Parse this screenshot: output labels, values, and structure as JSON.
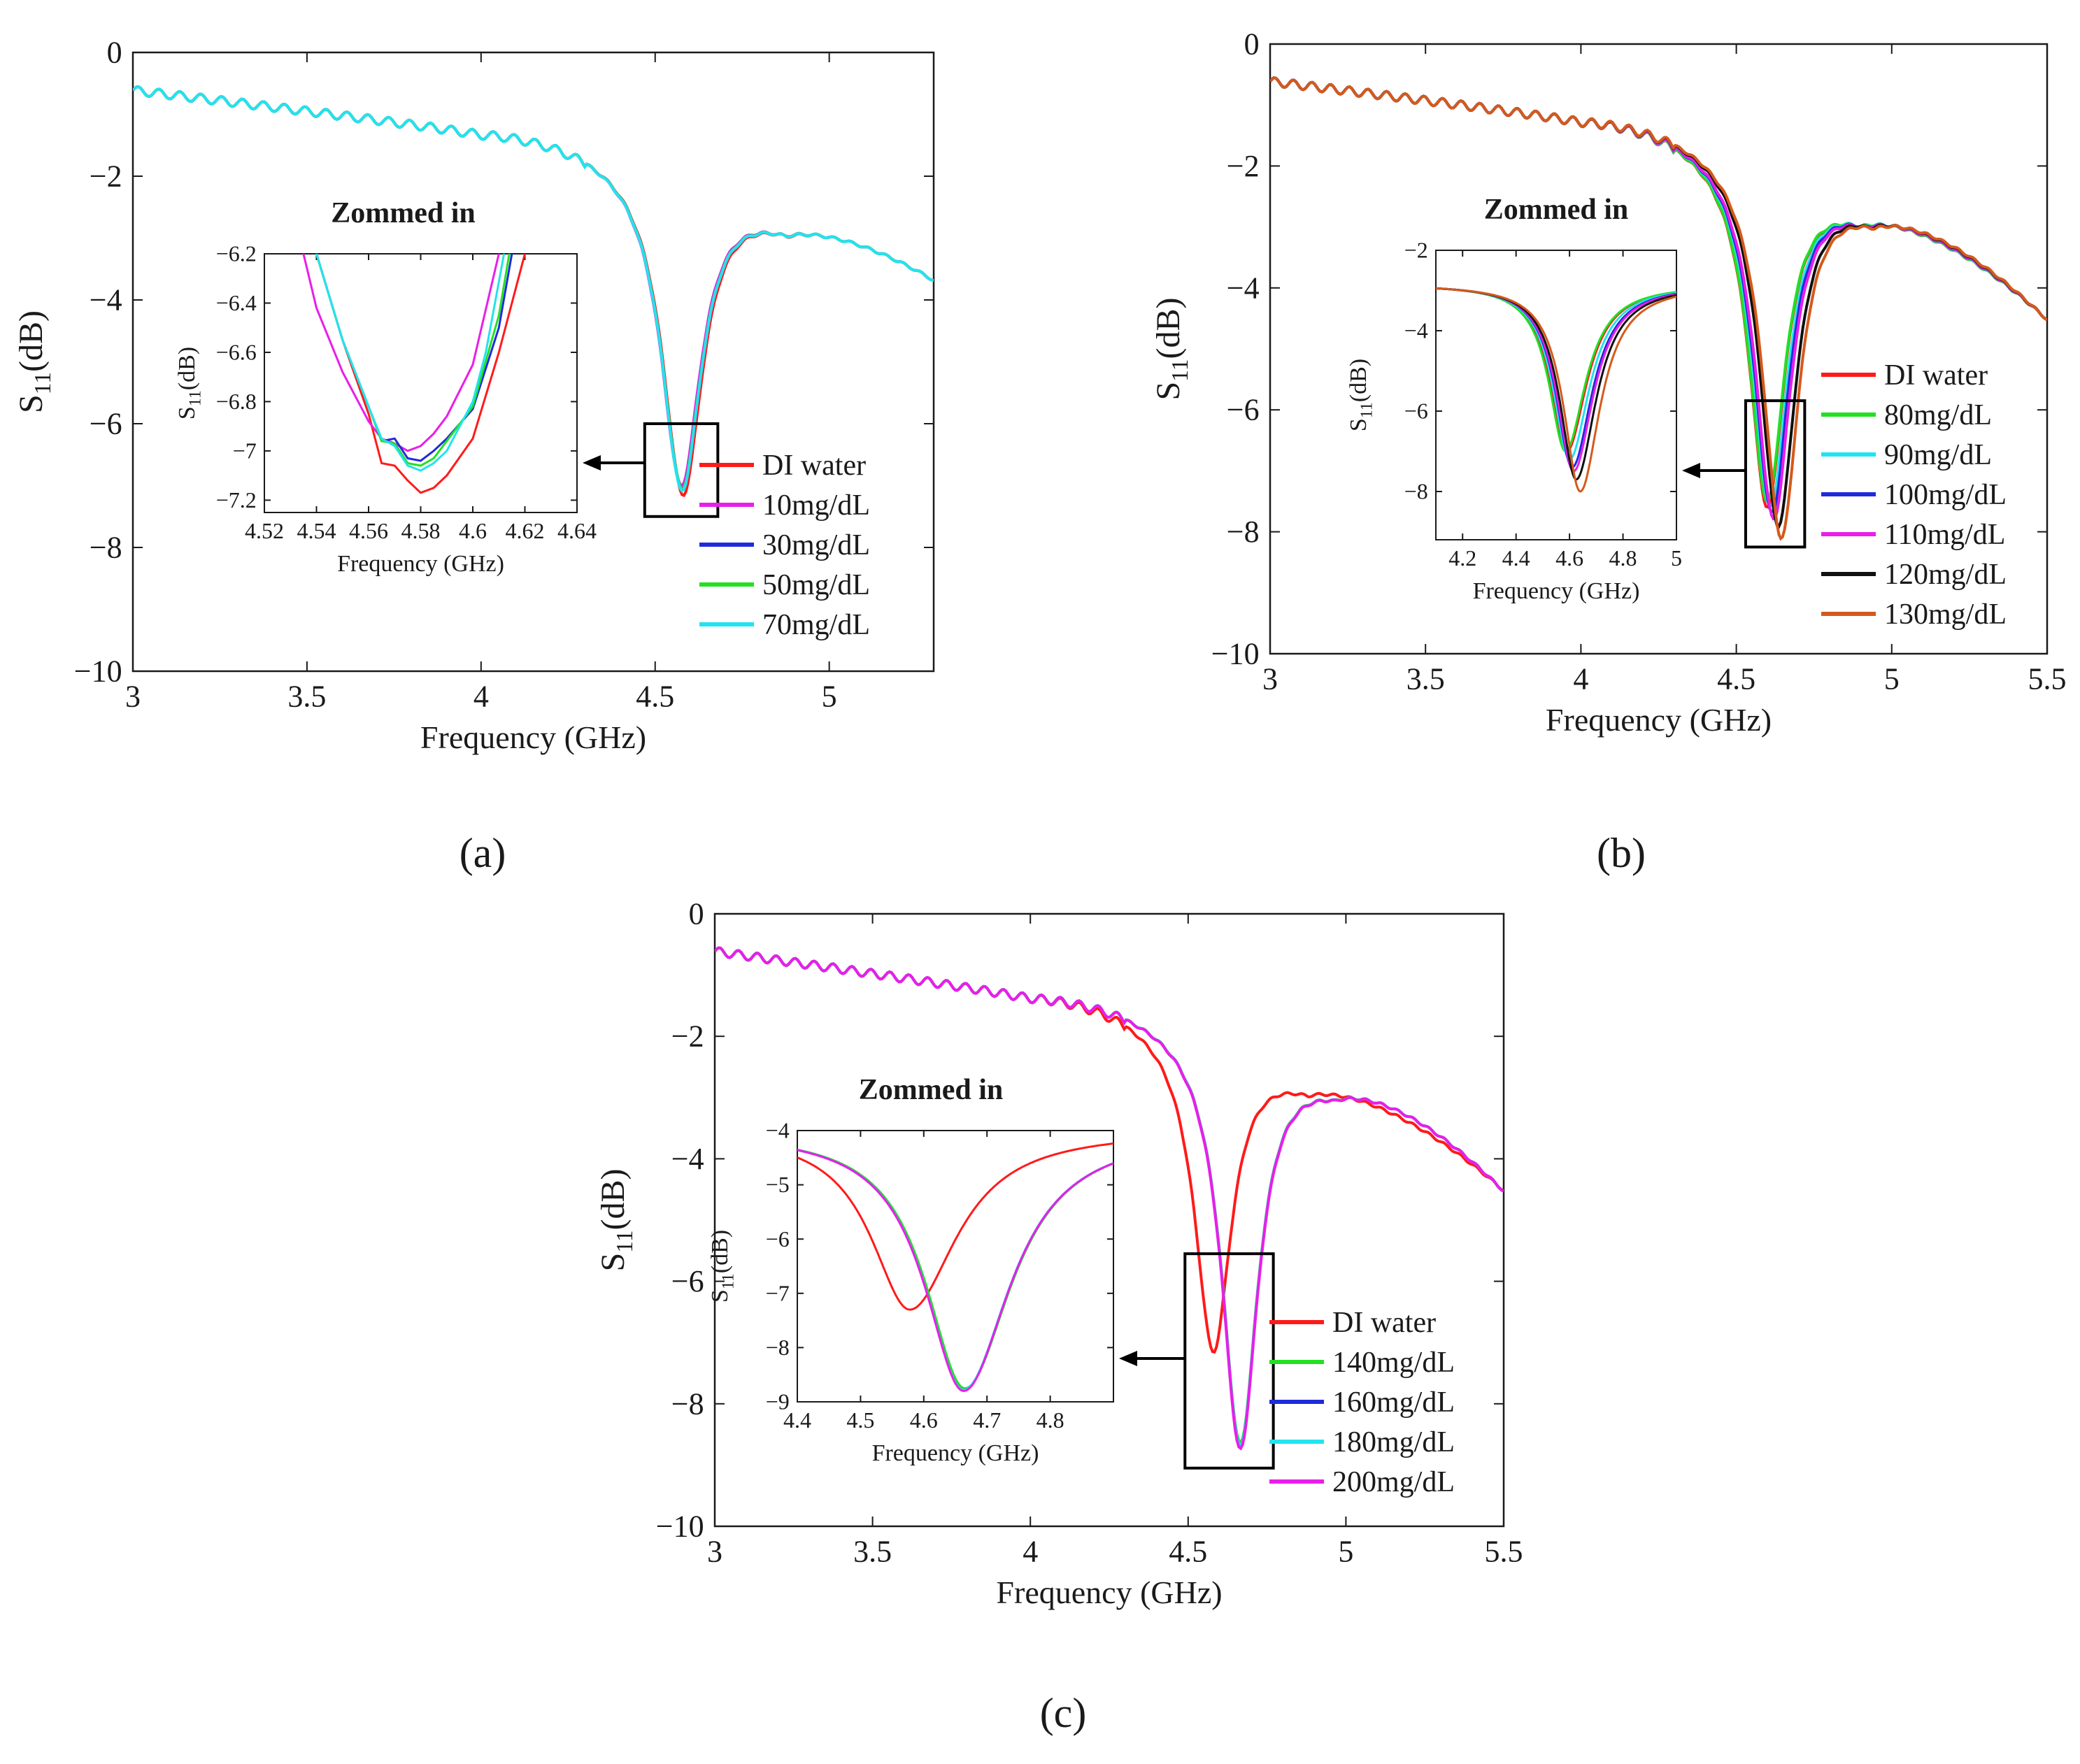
{
  "figure": {
    "panel_labels": [
      "(a)",
      "(b)",
      "(c)"
    ]
  },
  "styles": {
    "axis_color": "#1a1a1a",
    "series_colors": {
      "DI water": "#ff1a1a",
      "10mg/dL": "#e91ee9",
      "30mg/dL": "#1f2bdb",
      "50mg/dL": "#22e022",
      "70mg/dL": "#22e3ef",
      "80mg/dL": "#22e022",
      "90mg/dL": "#22e3ef",
      "100mg/dL": "#1f2bdb",
      "110mg/dL": "#e91ee9",
      "120mg/dL": "#101010",
      "130mg/dL": "#d45a1c",
      "140mg/dL": "#22e022",
      "160mg/dL": "#1f2bdb",
      "180mg/dL": "#22e3ef",
      "200mg/dL": "#e91ee9"
    }
  },
  "chart_data": [
    {
      "id": "a",
      "type": "line",
      "title": "",
      "xlabel": "Frequency (GHz)",
      "ylabel": "S11(dB)",
      "xlim": [
        3,
        5.3
      ],
      "ylim": [
        -10,
        0
      ],
      "xticks": [
        3,
        3.5,
        4,
        4.5,
        5
      ],
      "xtick_labels": [
        "3",
        "3.5",
        "4",
        "4.5",
        "5"
      ],
      "yticks": [
        0,
        -2,
        -4,
        -6,
        -8,
        -10
      ],
      "ytick_labels": [
        "0",
        "−2",
        "−4",
        "−6",
        "−8",
        "−10"
      ],
      "curve_shape": {
        "baseline_at_3GHz": -0.6,
        "baseline_at_4GHz": -1.25,
        "peak_after_dip": -2.75,
        "value_at_xmax": -3.65
      },
      "series": [
        {
          "name": "DI water",
          "min_freq": 4.58,
          "min_db": -7.15
        },
        {
          "name": "10mg/dL",
          "min_freq": 4.575,
          "min_db": -7.0
        },
        {
          "name": "30mg/dL",
          "min_freq": 4.577,
          "min_db": -7.05
        },
        {
          "name": "50mg/dL",
          "min_freq": 4.577,
          "min_db": -7.05
        },
        {
          "name": "70mg/dL",
          "min_freq": 4.577,
          "min_db": -7.08
        }
      ],
      "legend": [
        "DI water",
        "10mg/dL",
        "30mg/dL",
        "50mg/dL",
        "70mg/dL"
      ],
      "zoom_box": {
        "x": [
          4.47,
          4.68
        ],
        "y": [
          -7.5,
          -6.0
        ]
      },
      "inset": {
        "title": "Zommed in",
        "xlabel": "Frequency (GHz)",
        "ylabel": "S11(dB)",
        "xlim": [
          4.52,
          4.64
        ],
        "ylim": [
          -7.25,
          -6.2
        ],
        "xticks": [
          4.52,
          4.54,
          4.56,
          4.58,
          4.6,
          4.62,
          4.64
        ],
        "xtick_labels": [
          "4.52",
          "4.54",
          "4.56",
          "4.58",
          "4.6",
          "4.62",
          "4.64"
        ],
        "yticks": [
          -6.2,
          -6.4,
          -6.6,
          -6.8,
          -7,
          -7.2
        ],
        "ytick_labels": [
          "−6.2",
          "−6.4",
          "−6.6",
          "−6.8",
          "−7",
          "−7.2"
        ],
        "series": [
          {
            "name": "DI water",
            "x": [
              4.54,
              4.55,
              4.56,
              4.565,
              4.57,
              4.575,
              4.58,
              4.585,
              4.59,
              4.6,
              4.61,
              4.62
            ],
            "y": [
              -6.2,
              -6.55,
              -6.85,
              -7.05,
              -7.06,
              -7.12,
              -7.17,
              -7.15,
              -7.1,
              -6.95,
              -6.6,
              -6.2
            ]
          },
          {
            "name": "10mg/dL",
            "x": [
              4.535,
              4.54,
              4.55,
              4.56,
              4.565,
              4.57,
              4.575,
              4.58,
              4.585,
              4.59,
              4.6,
              4.61
            ],
            "y": [
              -6.2,
              -6.42,
              -6.68,
              -6.88,
              -6.95,
              -6.97,
              -7.0,
              -6.98,
              -6.93,
              -6.86,
              -6.65,
              -6.2
            ]
          },
          {
            "name": "30mg/dL",
            "x": [
              4.54,
              4.55,
              4.56,
              4.565,
              4.57,
              4.575,
              4.58,
              4.585,
              4.59,
              4.6,
              4.61,
              4.615
            ],
            "y": [
              -6.2,
              -6.55,
              -6.82,
              -6.96,
              -6.95,
              -7.03,
              -7.04,
              -7.0,
              -6.95,
              -6.83,
              -6.5,
              -6.2
            ]
          },
          {
            "name": "50mg/dL",
            "x": [
              4.54,
              4.55,
              4.56,
              4.565,
              4.57,
              4.575,
              4.58,
              4.585,
              4.59,
              4.6,
              4.61,
              4.614
            ],
            "y": [
              -6.2,
              -6.55,
              -6.82,
              -6.96,
              -6.97,
              -7.05,
              -7.06,
              -7.03,
              -6.96,
              -6.82,
              -6.45,
              -6.2
            ]
          },
          {
            "name": "70mg/dL",
            "x": [
              4.54,
              4.55,
              4.56,
              4.565,
              4.57,
              4.575,
              4.58,
              4.585,
              4.59,
              4.6,
              4.605,
              4.612
            ],
            "y": [
              -6.2,
              -6.55,
              -6.82,
              -6.95,
              -6.98,
              -7.06,
              -7.08,
              -7.05,
              -7.0,
              -6.8,
              -6.6,
              -6.2
            ]
          }
        ]
      }
    },
    {
      "id": "b",
      "type": "line",
      "title": "",
      "xlabel": "Frequency (GHz)",
      "ylabel": "S11(dB)",
      "xlim": [
        3,
        5.5
      ],
      "ylim": [
        -10,
        0
      ],
      "xticks": [
        3,
        3.5,
        4,
        4.5,
        5,
        5.5
      ],
      "xtick_labels": [
        "3",
        "3.5",
        "4",
        "4.5",
        "5",
        "5.5"
      ],
      "yticks": [
        0,
        -2,
        -4,
        -6,
        -8,
        -10
      ],
      "ytick_labels": [
        "0",
        "−2",
        "−4",
        "−6",
        "−8",
        "−10"
      ],
      "curve_shape": {
        "baseline_at_3GHz": -0.6,
        "baseline_at_4GHz": -1.2,
        "peak_after_dip": -2.75,
        "value_at_xmax": -4.5
      },
      "series": [
        {
          "name": "DI water",
          "min_freq": 4.6,
          "min_db": -7.6
        },
        {
          "name": "80mg/dL",
          "min_freq": 4.6,
          "min_db": -7.5
        },
        {
          "name": "90mg/dL",
          "min_freq": 4.61,
          "min_db": -7.6
        },
        {
          "name": "100mg/dL",
          "min_freq": 4.615,
          "min_db": -7.7
        },
        {
          "name": "110mg/dL",
          "min_freq": 4.62,
          "min_db": -7.8
        },
        {
          "name": "120mg/dL",
          "min_freq": 4.635,
          "min_db": -7.9
        },
        {
          "name": "130mg/dL",
          "min_freq": 4.645,
          "min_db": -8.1
        }
      ],
      "legend": [
        "DI water",
        "80mg/dL",
        "90mg/dL",
        "100mg/dL",
        "110mg/dL",
        "120mg/dL",
        "130mg/dL"
      ],
      "zoom_box": {
        "x": [
          4.53,
          4.72
        ],
        "y": [
          -8.25,
          -5.85
        ]
      },
      "inset": {
        "title": "Zommed in",
        "xlabel": "Frequency (GHz)",
        "ylabel": "S11(dB)",
        "xlim": [
          4.1,
          5
        ],
        "ylim": [
          -9.2,
          -2
        ],
        "xticks": [
          4.2,
          4.4,
          4.6,
          4.8,
          5
        ],
        "xtick_labels": [
          "4.2",
          "4.4",
          "4.6",
          "4.8",
          "5"
        ],
        "yticks": [
          -2,
          -4,
          -6,
          -8
        ],
        "ytick_labels": [
          "−2",
          "−4",
          "−6",
          "−8"
        ],
        "series": [
          {
            "name": "DI water",
            "min_freq": 4.59,
            "min_db": -7.0
          },
          {
            "name": "80mg/dL",
            "min_freq": 4.585,
            "min_db": -7.0
          },
          {
            "name": "90mg/dL",
            "min_freq": 4.6,
            "min_db": -7.2
          },
          {
            "name": "100mg/dL",
            "min_freq": 4.61,
            "min_db": -7.4
          },
          {
            "name": "110mg/dL",
            "min_freq": 4.615,
            "min_db": -7.5
          },
          {
            "name": "120mg/dL",
            "min_freq": 4.625,
            "min_db": -7.7
          },
          {
            "name": "130mg/dL",
            "min_freq": 4.64,
            "min_db": -8.0
          }
        ]
      }
    },
    {
      "id": "c",
      "type": "line",
      "title": "",
      "xlabel": "Frequency (GHz)",
      "ylabel": "S11(dB)",
      "xlim": [
        3,
        5.5
      ],
      "ylim": [
        -10,
        0
      ],
      "xticks": [
        3,
        3.5,
        4,
        4.5,
        5,
        5.5
      ],
      "xtick_labels": [
        "3",
        "3.5",
        "4",
        "4.5",
        "5",
        "5.5"
      ],
      "yticks": [
        0,
        -2,
        -4,
        -6,
        -8,
        -10
      ],
      "ytick_labels": [
        "0",
        "−2",
        "−4",
        "−6",
        "−8",
        "−10"
      ],
      "curve_shape": {
        "baseline_at_3GHz": -0.6,
        "baseline_at_4GHz": -1.3,
        "peak_after_dip": -2.75,
        "value_at_xmax": -4.5
      },
      "series": [
        {
          "name": "DI water",
          "min_freq": 4.58,
          "min_db": -7.15
        },
        {
          "name": "140mg/dL",
          "min_freq": 4.665,
          "min_db": -8.65
        },
        {
          "name": "160mg/dL",
          "min_freq": 4.665,
          "min_db": -8.7
        },
        {
          "name": "180mg/dL",
          "min_freq": 4.665,
          "min_db": -8.7
        },
        {
          "name": "200mg/dL",
          "min_freq": 4.665,
          "min_db": -8.75
        }
      ],
      "legend": [
        "DI water",
        "140mg/dL",
        "160mg/dL",
        "180mg/dL",
        "200mg/dL"
      ],
      "zoom_box": {
        "x": [
          4.49,
          4.77
        ],
        "y": [
          -9.05,
          -5.55
        ]
      },
      "inset": {
        "title": "Zommed in",
        "xlabel": "Frequency (GHz)",
        "ylabel": "S11(dB)",
        "xlim": [
          4.4,
          4.9
        ],
        "ylim": [
          -9,
          -4
        ],
        "xticks": [
          4.4,
          4.5,
          4.6,
          4.7,
          4.8
        ],
        "xtick_labels": [
          "4.4",
          "4.5",
          "4.6",
          "4.7",
          "4.8"
        ],
        "yticks": [
          -4,
          -5,
          -6,
          -7,
          -8,
          -9
        ],
        "ytick_labels": [
          "−4",
          "−5",
          "−6",
          "−7",
          "−8",
          "−9"
        ],
        "series": [
          {
            "name": "DI water",
            "min_freq": 4.578,
            "min_db": -7.3
          },
          {
            "name": "140mg/dL",
            "min_freq": 4.665,
            "min_db": -8.75
          },
          {
            "name": "160mg/dL",
            "min_freq": 4.663,
            "min_db": -8.78
          },
          {
            "name": "180mg/dL",
            "min_freq": 4.663,
            "min_db": -8.78
          },
          {
            "name": "200mg/dL",
            "min_freq": 4.663,
            "min_db": -8.8
          }
        ]
      }
    }
  ]
}
